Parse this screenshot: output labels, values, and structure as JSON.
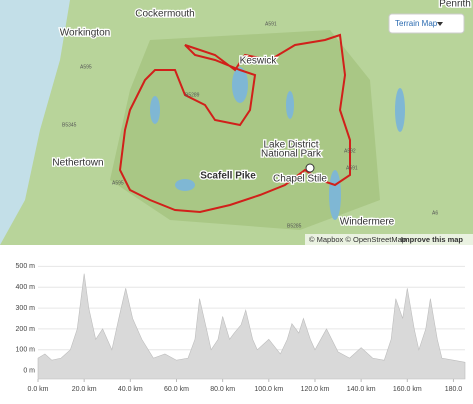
{
  "map": {
    "places": [
      "Cockermouth",
      "Workington",
      "Penrith",
      "Keswick",
      "Nethertown",
      "Scafell Pike",
      "Lake District",
      "National Park",
      "Chapel Stile",
      "Windermere"
    ],
    "roads": [
      "A591",
      "A595",
      "B5289",
      "B5345",
      "A595",
      "A592",
      "A591",
      "A6",
      "B5285"
    ],
    "layer_button": "Terrain Map",
    "attribution": "© Mapbox © OpenStreetMap",
    "improve_link": "Improve this map"
  },
  "chart_data": {
    "type": "area",
    "color": "#d9d9d9",
    "x": [
      0,
      3,
      6,
      10,
      14,
      17,
      20,
      22,
      25,
      28,
      32,
      35,
      38,
      41,
      45,
      50,
      55,
      60,
      65,
      68,
      70,
      73,
      75,
      78,
      80,
      83,
      85,
      88,
      90,
      93,
      95,
      100,
      105,
      108,
      110,
      113,
      115,
      118,
      120,
      125,
      130,
      135,
      140,
      145,
      150,
      153,
      155,
      158,
      160,
      163,
      165,
      168,
      170,
      173,
      175,
      180,
      185
    ],
    "values": [
      60,
      80,
      50,
      60,
      100,
      200,
      465,
      300,
      150,
      200,
      100,
      250,
      395,
      250,
      150,
      60,
      80,
      50,
      60,
      150,
      345,
      200,
      100,
      150,
      260,
      150,
      180,
      220,
      290,
      150,
      100,
      150,
      80,
      150,
      225,
      180,
      250,
      150,
      100,
      200,
      90,
      60,
      110,
      60,
      50,
      150,
      345,
      250,
      395,
      200,
      100,
      200,
      345,
      150,
      60,
      50,
      40
    ],
    "xlim": [
      0,
      185
    ],
    "ylim": [
      -40,
      540
    ],
    "xticks": [
      {
        "value": 0,
        "label": "0.0 km"
      },
      {
        "value": 20,
        "label": "20.0 km"
      },
      {
        "value": 40,
        "label": "40.0 km"
      },
      {
        "value": 60,
        "label": "60.0 km"
      },
      {
        "value": 80,
        "label": "80.0 km"
      },
      {
        "value": 100,
        "label": "100.0 km"
      },
      {
        "value": 120,
        "label": "120.0 km"
      },
      {
        "value": 140,
        "label": "140.0 km"
      },
      {
        "value": 160,
        "label": "160.0 km"
      },
      {
        "value": 180,
        "label": "180.0"
      }
    ],
    "yticks": [
      {
        "value": 0,
        "label": "0 m"
      },
      {
        "value": 100,
        "label": "100 m"
      },
      {
        "value": 200,
        "label": "200 m"
      },
      {
        "value": 300,
        "label": "300 m"
      },
      {
        "value": 400,
        "label": "400 m"
      },
      {
        "value": 500,
        "label": "500 m"
      }
    ],
    "grid": true
  }
}
